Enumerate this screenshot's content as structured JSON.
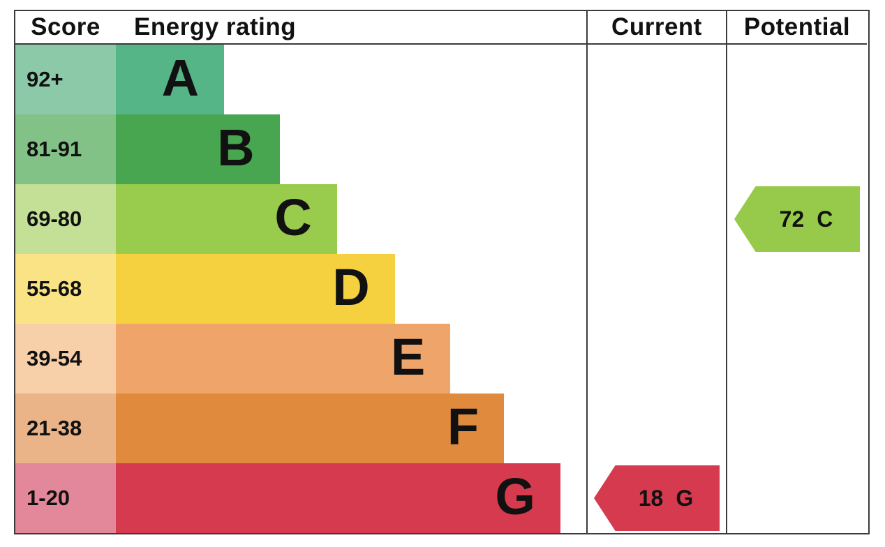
{
  "chart_data": {
    "type": "bar",
    "subtype": "epc-energy-rating",
    "orientation": "horizontal",
    "columns": {
      "score": "Score",
      "rating": "Energy rating",
      "current": "Current",
      "potential": "Potential"
    },
    "bands": [
      {
        "letter": "A",
        "score": "92+",
        "color": "#55b587",
        "tint": "#8cc9a9",
        "width": "23%"
      },
      {
        "letter": "B",
        "score": "81-91",
        "color": "#48a550",
        "tint": "#83c287",
        "width": "34.8%"
      },
      {
        "letter": "C",
        "score": "69-80",
        "color": "#99cb4c",
        "tint": "#c4df96",
        "width": "47%"
      },
      {
        "letter": "D",
        "score": "55-68",
        "color": "#f6d13f",
        "tint": "#f9e385",
        "width": "59.3%"
      },
      {
        "letter": "E",
        "score": "39-54",
        "color": "#efa569",
        "tint": "#f7cfa9",
        "width": "71.1%"
      },
      {
        "letter": "F",
        "score": "21-38",
        "color": "#e08a3e",
        "tint": "#eab388",
        "width": "82.5%"
      },
      {
        "letter": "G",
        "score": "1-20",
        "color": "#d53a4f",
        "tint": "#e3879b",
        "width": "94.5%"
      }
    ],
    "current": {
      "value": "18",
      "letter": "G",
      "band": "G",
      "color": "#d53a4f"
    },
    "potential": {
      "value": "72",
      "letter": "C",
      "band": "C",
      "color": "#97ca4a"
    }
  }
}
